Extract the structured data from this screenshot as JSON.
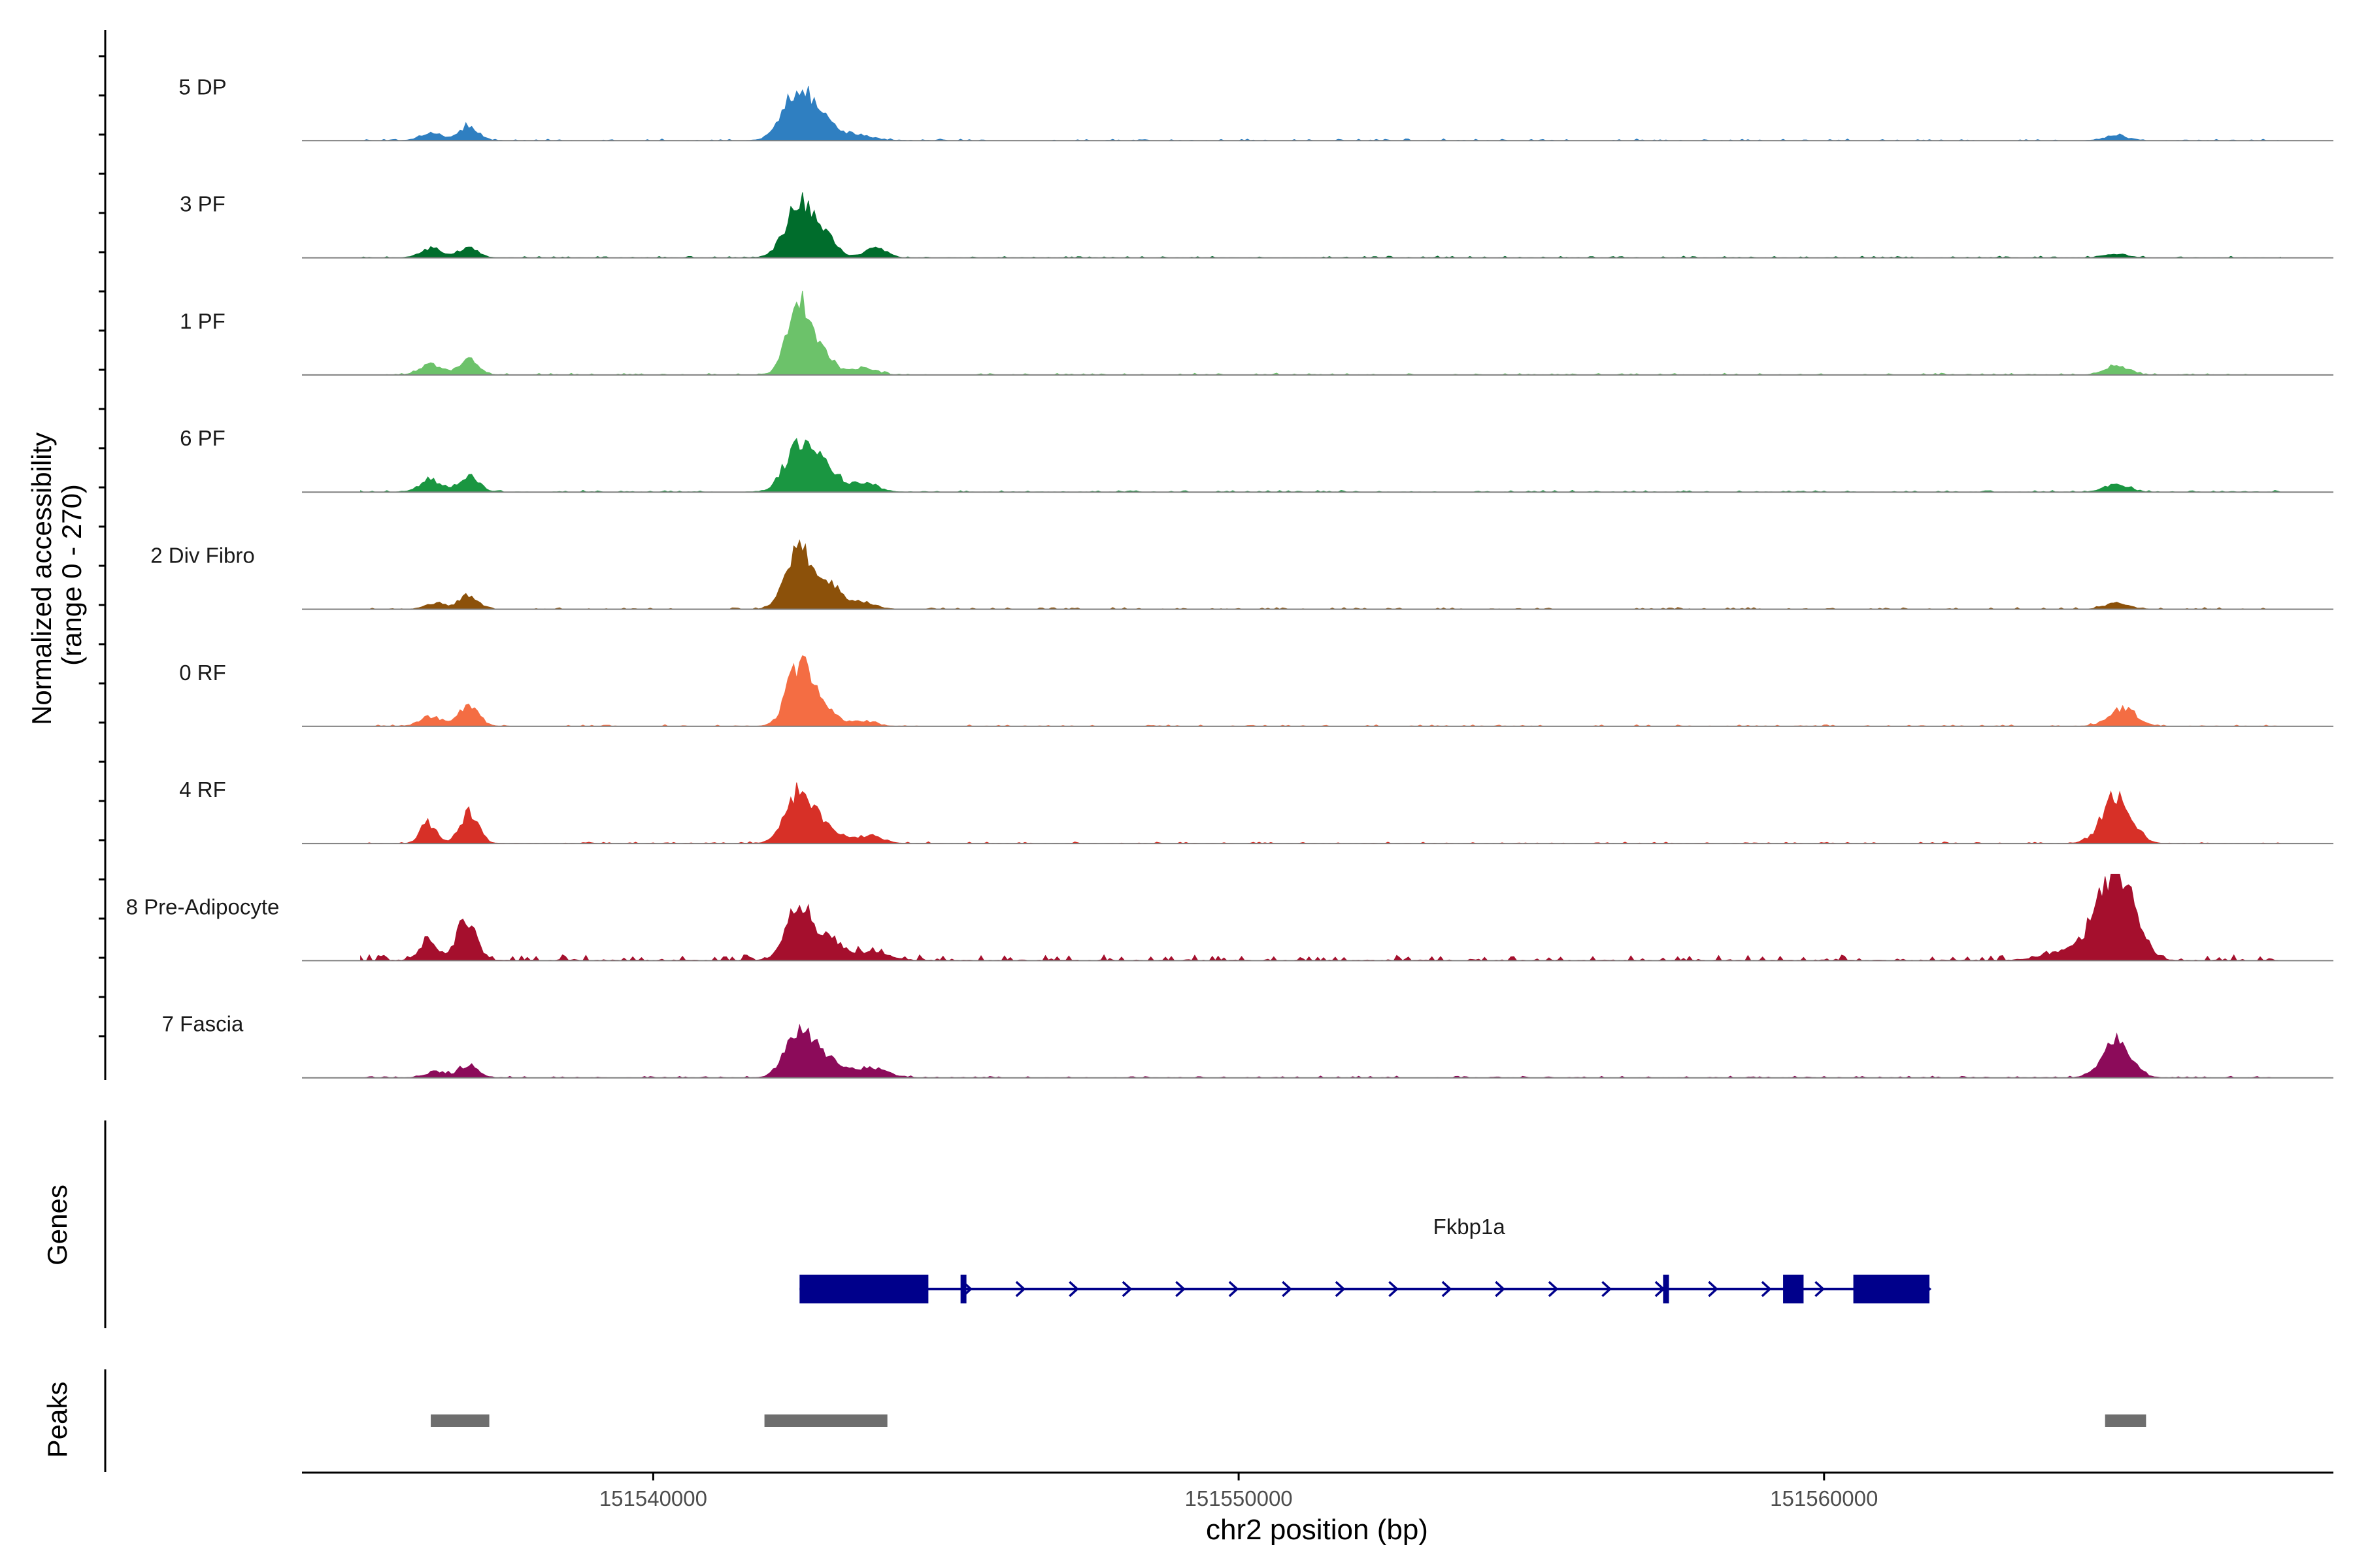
{
  "figure": {
    "ylabel_line1": "Normalized accessibility",
    "ylabel_line2": "(range 0 - 270)",
    "genes_label": "Genes",
    "peaks_label": "Peaks",
    "xlabel": "chr2 position (bp)"
  },
  "chart_data": {
    "type": "area",
    "title": "",
    "xlabel": "chr2 position (bp)",
    "ylabel": "Normalized accessibility (range 0 - 270)",
    "xlim": [
      151534000,
      151568700
    ],
    "ylim": [
      0,
      270
    ],
    "xticks": [
      151540000,
      151550000,
      151560000
    ],
    "xtick_labels": [
      "151540000",
      "151550000",
      "151560000"
    ],
    "grid": false,
    "legend": "none",
    "series": [
      {
        "name": "5 DP",
        "color": "#2f7fc1",
        "peaks": [
          [
            151536200,
            18,
            180
          ],
          [
            151536850,
            34,
            160
          ],
          [
            151542500,
            120,
            260
          ],
          [
            151542950,
            25,
            250
          ],
          [
            151543500,
            12,
            250
          ],
          [
            151565000,
            10,
            200
          ]
        ]
      },
      {
        "name": "3 PF",
        "color": "#006d2c",
        "peaks": [
          [
            151536200,
            22,
            180
          ],
          [
            151536850,
            22,
            160
          ],
          [
            151542500,
            122,
            240
          ],
          [
            151542950,
            40,
            200
          ],
          [
            151543800,
            25,
            180
          ],
          [
            151565000,
            8,
            200
          ]
        ]
      },
      {
        "name": "1 PF",
        "color": "#6cc26a",
        "peaks": [
          [
            151536200,
            24,
            180
          ],
          [
            151536850,
            34,
            170
          ],
          [
            151542500,
            170,
            200
          ],
          [
            151542900,
            40,
            200
          ],
          [
            151543600,
            18,
            200
          ],
          [
            151565000,
            22,
            200
          ]
        ]
      },
      {
        "name": "6 PF",
        "color": "#1a9641",
        "peaks": [
          [
            151536200,
            28,
            180
          ],
          [
            151536850,
            36,
            170
          ],
          [
            151542500,
            112,
            240
          ],
          [
            151542950,
            55,
            220
          ],
          [
            151543600,
            20,
            230
          ],
          [
            151565000,
            18,
            200
          ]
        ]
      },
      {
        "name": "2 Div Fibro",
        "color": "#8c510a",
        "peaks": [
          [
            151536300,
            14,
            180
          ],
          [
            151536850,
            32,
            150
          ],
          [
            151542500,
            134,
            220
          ],
          [
            151543000,
            55,
            220
          ],
          [
            151543600,
            15,
            200
          ],
          [
            151565000,
            14,
            200
          ]
        ]
      },
      {
        "name": "0 RF",
        "color": "#f46d43",
        "peaks": [
          [
            151536200,
            22,
            180
          ],
          [
            151536850,
            48,
            170
          ],
          [
            151542500,
            138,
            210
          ],
          [
            151542950,
            40,
            200
          ],
          [
            151543600,
            12,
            200
          ],
          [
            151565100,
            40,
            230
          ]
        ]
      },
      {
        "name": "4 RF",
        "color": "#d73027",
        "peaks": [
          [
            151536150,
            45,
            130
          ],
          [
            151536850,
            70,
            160
          ],
          [
            151542500,
            118,
            230
          ],
          [
            151543000,
            30,
            220
          ],
          [
            151543700,
            18,
            220
          ],
          [
            151565000,
            112,
            240
          ]
        ]
      },
      {
        "name": "8 Pre-Adipocyte",
        "color": "#a50f2d",
        "peaks": [
          [
            151536150,
            38,
            150
          ],
          [
            151536800,
            90,
            170
          ],
          [
            151542500,
            138,
            210
          ],
          [
            151543000,
            45,
            220
          ],
          [
            151543700,
            18,
            300
          ],
          [
            151565000,
            200,
            300
          ],
          [
            151564300,
            26,
            420
          ]
        ]
      },
      {
        "name": "7 Fascia",
        "color": "#8c0b5a",
        "peaks": [
          [
            151536300,
            14,
            180
          ],
          [
            151536850,
            30,
            160
          ],
          [
            151542500,
            118,
            230
          ],
          [
            151543000,
            40,
            220
          ],
          [
            151543700,
            22,
            280
          ],
          [
            151565000,
            84,
            240
          ]
        ]
      }
    ],
    "genes": [
      {
        "name": "Fkbp1a",
        "strand": "+",
        "start": 151542500,
        "end": 151561800,
        "exons": [
          [
            151542500,
            151544700
          ],
          [
            151545250,
            151545350
          ],
          [
            151557250,
            151557350
          ],
          [
            151559300,
            151559650
          ],
          [
            151560500,
            151561800
          ]
        ]
      }
    ],
    "peak_regions": [
      [
        151536200,
        151537200
      ],
      [
        151541900,
        151544000
      ],
      [
        151564800,
        151565500
      ]
    ]
  }
}
